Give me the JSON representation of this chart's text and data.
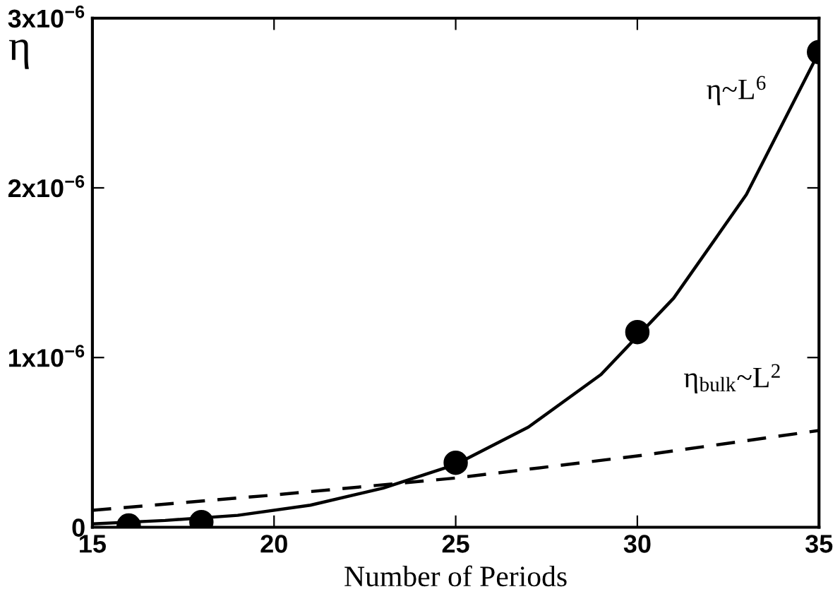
{
  "chart_data": {
    "type": "line",
    "xlabel": "Number of Periods",
    "ylabel": "η",
    "xlim": [
      15,
      35
    ],
    "xticks": [
      15,
      20,
      25,
      30,
      35
    ],
    "ylim": [
      0,
      3e-06
    ],
    "yticks": [
      0,
      {
        "value": 1e-06,
        "label": "1x10$^{−6}$"
      },
      {
        "value": 2e-06,
        "label": "2x10$^{−6}$"
      },
      {
        "value": 3e-06,
        "label": "3x10$^{−6}$"
      }
    ],
    "grid": false,
    "legend": false,
    "series": [
      {
        "type": "scatter",
        "marker": "circle",
        "color": "#000000",
        "x": [
          16,
          18,
          25,
          30,
          35
        ],
        "values": [
          1e-08,
          3e-08,
          3.8e-07,
          1.15e-06,
          2.8e-06
        ]
      },
      {
        "name": "η~L$^{6}$",
        "line_style": "solid",
        "color": "#000000",
        "x": [
          15,
          17,
          19,
          21,
          23,
          25,
          27,
          29,
          31,
          33,
          35
        ],
        "values": [
          2e-08,
          4e-08,
          7e-08,
          1.3e-07,
          2.3e-07,
          3.7e-07,
          5.9e-07,
          9e-07,
          1.35e-06,
          1.96e-06,
          2.8e-06
        ]
      },
      {
        "type": "line",
        "name": "η$_{bulk}$~L$^{2}$",
        "line_style": "dashed",
        "color": "#000000",
        "x": [
          15,
          20,
          25,
          30,
          35
        ],
        "values": [
          1e-07,
          1.9e-07,
          2.9e-07,
          4.2e-07,
          5.7e-07
        ]
      }
    ]
  }
}
